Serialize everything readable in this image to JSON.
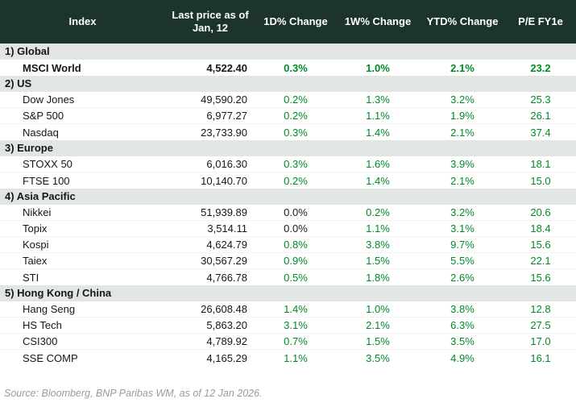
{
  "header": {
    "index_label": "Index",
    "price_label_line1": "Last price as of",
    "price_label_line2": "Jan, 12",
    "d1_label": "1D% Change",
    "w1_label": "1W% Change",
    "ytd_label": "YTD% Change",
    "pe_label": "P/E FY1e"
  },
  "colors": {
    "header_background": "#1c332e",
    "header_text": "#ffffff",
    "section_background": "#e1e6e2",
    "positive_change": "#008a28",
    "neutral_change": "#1a1a1a"
  },
  "sections": [
    {
      "label": "1) Global",
      "rows": [
        {
          "name": "MSCI World",
          "price": "4,522.40",
          "d1": "0.3%",
          "w1": "1.0%",
          "ytd": "2.1%",
          "pe": "23.2",
          "bold": true
        }
      ]
    },
    {
      "label": "2) US",
      "rows": [
        {
          "name": "Dow Jones",
          "price": "49,590.20",
          "d1": "0.2%",
          "w1": "1.3%",
          "ytd": "3.2%",
          "pe": "25.3",
          "bold": false
        },
        {
          "name": "S&P 500",
          "price": "6,977.27",
          "d1": "0.2%",
          "w1": "1.1%",
          "ytd": "1.9%",
          "pe": "26.1",
          "bold": false
        },
        {
          "name": "Nasdaq",
          "price": "23,733.90",
          "d1": "0.3%",
          "w1": "1.4%",
          "ytd": "2.1%",
          "pe": "37.4",
          "bold": false
        }
      ]
    },
    {
      "label": "3) Europe",
      "rows": [
        {
          "name": "STOXX 50",
          "price": "6,016.30",
          "d1": "0.3%",
          "w1": "1.6%",
          "ytd": "3.9%",
          "pe": "18.1",
          "bold": false
        },
        {
          "name": "FTSE 100",
          "price": "10,140.70",
          "d1": "0.2%",
          "w1": "1.4%",
          "ytd": "2.1%",
          "pe": "15.0",
          "bold": false
        }
      ]
    },
    {
      "label": "4) Asia Pacific",
      "rows": [
        {
          "name": "Nikkei",
          "price": "51,939.89",
          "d1": "0.0%",
          "w1": "0.2%",
          "ytd": "3.2%",
          "pe": "20.6",
          "bold": false
        },
        {
          "name": "Topix",
          "price": "3,514.11",
          "d1": "0.0%",
          "w1": "1.1%",
          "ytd": "3.1%",
          "pe": "18.4",
          "bold": false
        },
        {
          "name": "Kospi",
          "price": "4,624.79",
          "d1": "0.8%",
          "w1": "3.8%",
          "ytd": "9.7%",
          "pe": "15.6",
          "bold": false
        },
        {
          "name": "Taiex",
          "price": "30,567.29",
          "d1": "0.9%",
          "w1": "1.5%",
          "ytd": "5.5%",
          "pe": "22.1",
          "bold": false
        },
        {
          "name": "STI",
          "price": "4,766.78",
          "d1": "0.5%",
          "w1": "1.8%",
          "ytd": "2.6%",
          "pe": "15.6",
          "bold": false
        }
      ]
    },
    {
      "label": "5) Hong Kong / China",
      "rows": [
        {
          "name": "Hang Seng",
          "price": "26,608.48",
          "d1": "1.4%",
          "w1": "1.0%",
          "ytd": "3.8%",
          "pe": "12.8",
          "bold": false
        },
        {
          "name": "HS Tech",
          "price": "5,863.20",
          "d1": "3.1%",
          "w1": "2.1%",
          "ytd": "6.3%",
          "pe": "27.5",
          "bold": false
        },
        {
          "name": "CSI300",
          "price": "4,789.92",
          "d1": "0.7%",
          "w1": "1.5%",
          "ytd": "3.5%",
          "pe": "17.0",
          "bold": false
        },
        {
          "name": "SSE COMP",
          "price": "4,165.29",
          "d1": "1.1%",
          "w1": "3.5%",
          "ytd": "4.9%",
          "pe": "16.1",
          "bold": false
        }
      ]
    }
  ],
  "footer": {
    "source": "Source: Bloomberg, BNP Paribas WM, as of 12 Jan 2026."
  }
}
